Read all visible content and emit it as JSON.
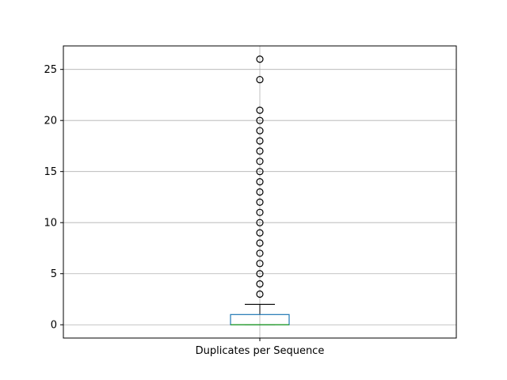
{
  "chart_data": {
    "type": "box",
    "title": "",
    "xlabel": "",
    "ylabel": "",
    "categories": [
      "Duplicates per Sequence"
    ],
    "ylim": [
      -1.3,
      27.3
    ],
    "yticks": [
      0,
      5,
      10,
      15,
      20,
      25
    ],
    "ytick_labels": [
      "0",
      "5",
      "10",
      "15",
      "20",
      "25"
    ],
    "grid": true,
    "box": {
      "q1": 0,
      "median": 0,
      "q3": 1,
      "whisker_low": 0,
      "whisker_high": 2,
      "outliers": [
        3,
        4,
        5,
        6,
        7,
        8,
        9,
        10,
        11,
        12,
        13,
        14,
        15,
        16,
        17,
        18,
        19,
        20,
        21,
        24,
        26
      ]
    },
    "colors": {
      "box": "#1f77b4",
      "median": "#2ca02c",
      "grid": "#b0b0b0",
      "whisker": "#000000",
      "outlier": "#000000"
    }
  }
}
